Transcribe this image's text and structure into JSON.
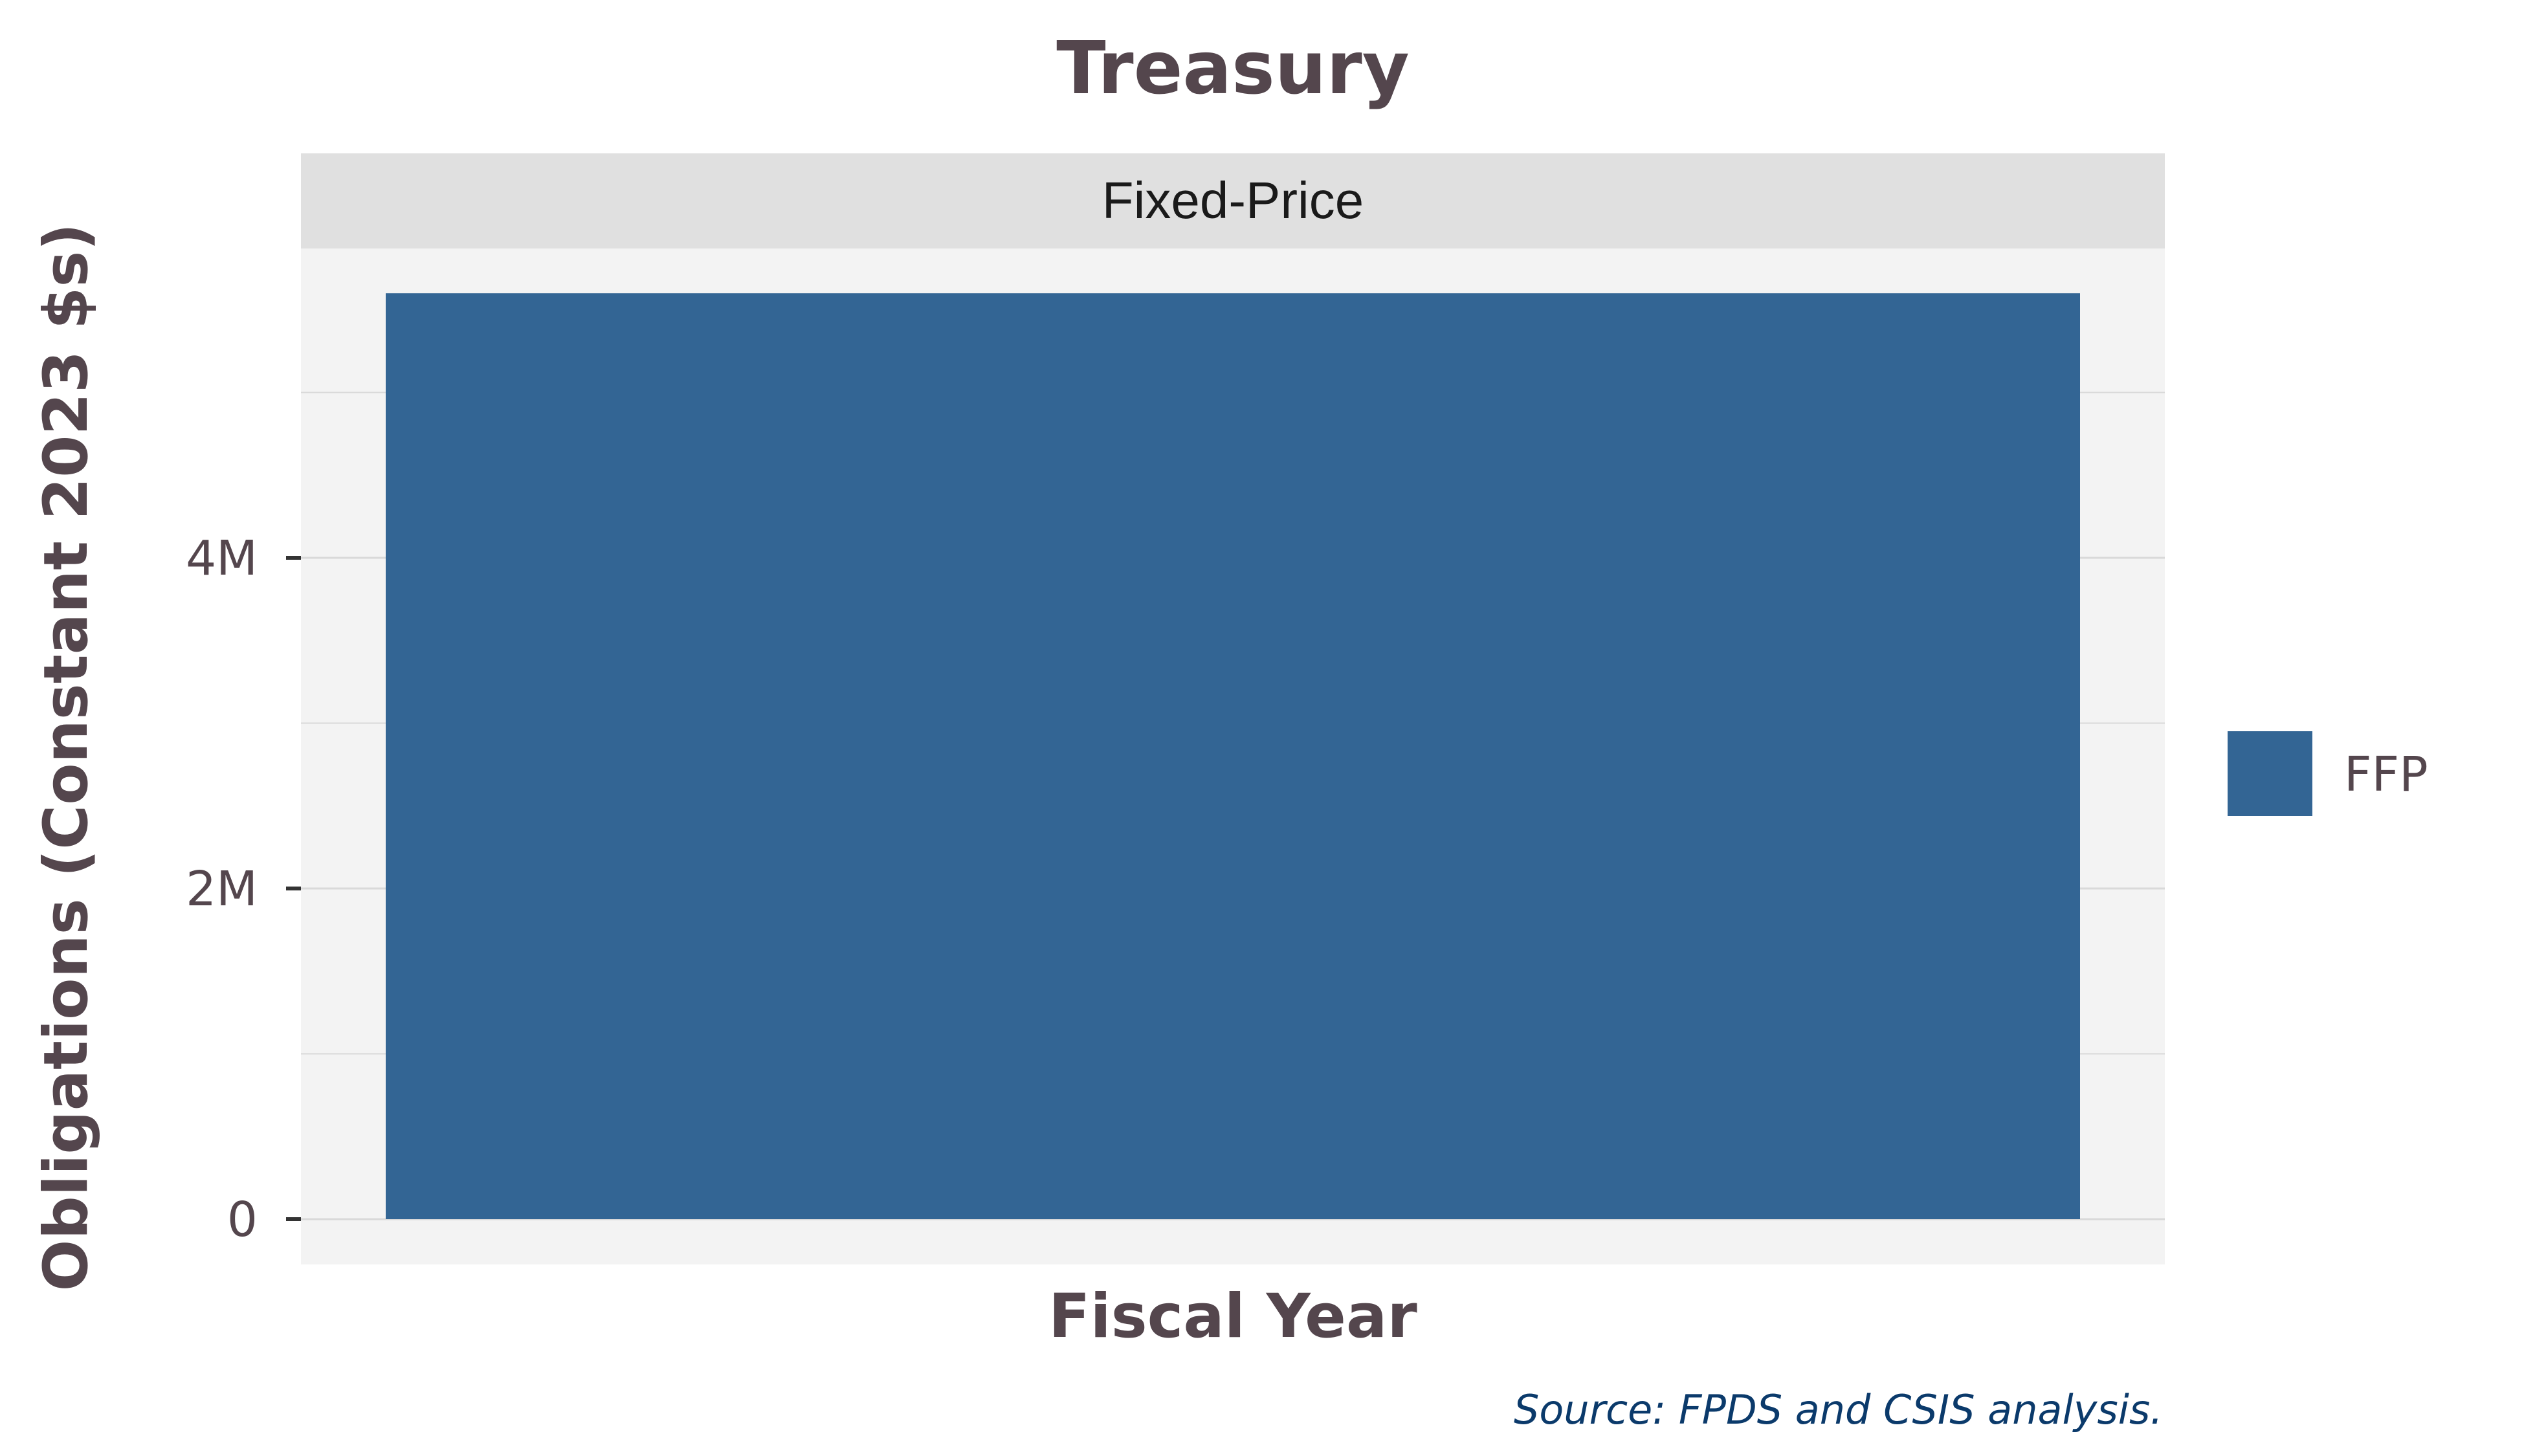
{
  "chart_data": {
    "type": "bar",
    "title": "Treasury",
    "facet_label": "Fixed-Price",
    "xlabel": "Fiscal Year",
    "ylabel": "Obligations (Constant 2023 $s)",
    "categories": [
      ""
    ],
    "series": [
      {
        "name": "FFP",
        "values": [
          5600000
        ],
        "color": "#336594"
      }
    ],
    "ylim": [
      0,
      5880000
    ],
    "y_ticks": [
      {
        "value": 0,
        "label": "0"
      },
      {
        "value": 2000000,
        "label": "2M"
      },
      {
        "value": 4000000,
        "label": "4M"
      }
    ],
    "y_minor_gridlines": [
      1000000,
      3000000,
      5000000
    ],
    "grid": true,
    "legend_position": "right",
    "source_note": "Source: FPDS and CSIS analysis.",
    "colors": {
      "panel_background": "#f3f3f3",
      "strip_background": "#e0e0e0",
      "gridline": "#d9d9d9",
      "text": "#54464d",
      "source_text": "#0b3a6b"
    }
  }
}
